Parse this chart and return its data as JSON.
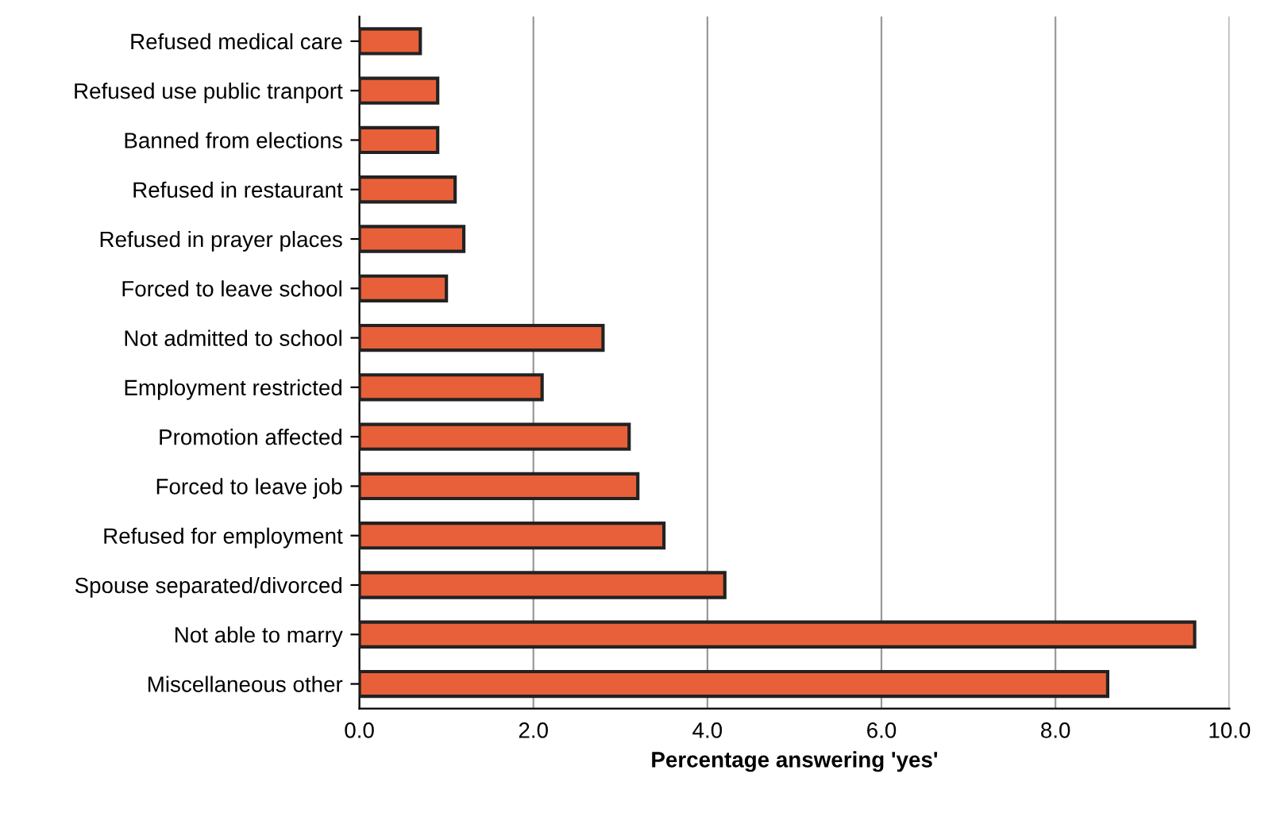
{
  "chart_data": {
    "type": "bar",
    "orientation": "horizontal",
    "xlabel": "Percentage answering 'yes'",
    "categories": [
      "Refused medical care",
      "Refused use public tranport",
      "Banned from elections",
      "Refused in restaurant",
      "Refused in prayer places",
      "Forced to leave school",
      "Not admitted to school",
      "Employment restricted",
      "Promotion affected",
      "Forced to leave job",
      "Refused for employment",
      "Spouse separated/divorced",
      "Not able to marry",
      "Miscellaneous other"
    ],
    "values": [
      0.7,
      0.9,
      0.9,
      1.1,
      1.2,
      1.0,
      2.8,
      2.1,
      3.1,
      3.2,
      3.5,
      4.2,
      9.6,
      8.6
    ],
    "color": "#e8603a",
    "xlim": [
      0,
      10
    ],
    "xticks": [
      {
        "value": 0,
        "label": "0.0"
      },
      {
        "value": 2,
        "label": "2.0"
      },
      {
        "value": 4,
        "label": "4.0"
      },
      {
        "value": 6,
        "label": "6.0"
      },
      {
        "value": 8,
        "label": "8.0"
      },
      {
        "value": 10,
        "label": "10.0"
      }
    ],
    "grid": "x",
    "legend": false
  }
}
